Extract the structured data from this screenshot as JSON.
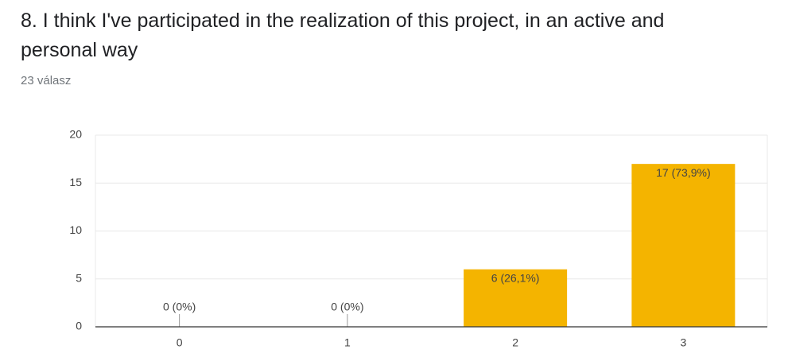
{
  "chart_data": {
    "type": "bar",
    "title": "8. I think I've participated in the realization of this project, in an active and personal way",
    "subtitle": "23 válasz",
    "categories": [
      "0",
      "1",
      "2",
      "3"
    ],
    "values": [
      0,
      0,
      6,
      17
    ],
    "value_labels": [
      "0 (0%)",
      "0 (0%)",
      "6 (26,1%)",
      "17 (73,9%)"
    ],
    "color": "#f4b400",
    "ylim": [
      0,
      20
    ],
    "yticks": [
      0,
      5,
      10,
      15,
      20
    ],
    "grid": true
  }
}
